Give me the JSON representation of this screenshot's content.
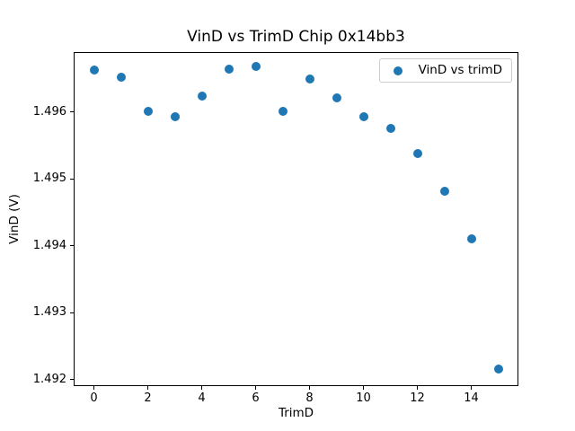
{
  "figure": {
    "background": "#ffffff",
    "text_color": "#000000"
  },
  "chart_data": {
    "type": "scatter",
    "title": "VinD vs TrimD Chip 0x14bb3",
    "xlabel": "TrimD",
    "ylabel": "VinD (V)",
    "xlim": [
      -0.75,
      15.75
    ],
    "ylim": [
      1.4919,
      1.4969
    ],
    "x_ticks": [
      0,
      2,
      4,
      6,
      8,
      10,
      12,
      14
    ],
    "x_tick_labels": [
      "0",
      "2",
      "4",
      "6",
      "8",
      "10",
      "12",
      "14"
    ],
    "y_ticks": [
      1.496,
      1.495,
      1.494,
      1.493,
      1.492
    ],
    "y_tick_labels": [
      "1.496",
      "1.495",
      "1.494",
      "1.493",
      "1.492"
    ],
    "grid": false,
    "legend": {
      "position": "upper right",
      "entries": [
        {
          "label": "VinD vs trimD",
          "marker": "circle",
          "color": "#1f77b4"
        }
      ]
    },
    "series": [
      {
        "name": "VinD vs trimD",
        "marker": "circle",
        "color": "#1f77b4",
        "x": [
          0,
          1,
          2,
          3,
          4,
          5,
          6,
          7,
          8,
          9,
          10,
          11,
          12,
          13,
          14,
          15
        ],
        "y": [
          1.49663,
          1.49653,
          1.49601,
          1.49593,
          1.49624,
          1.49665,
          1.49668,
          1.49601,
          1.4965,
          1.49621,
          1.49593,
          1.49576,
          1.49538,
          1.49482,
          1.4941,
          1.49216
        ]
      }
    ]
  }
}
